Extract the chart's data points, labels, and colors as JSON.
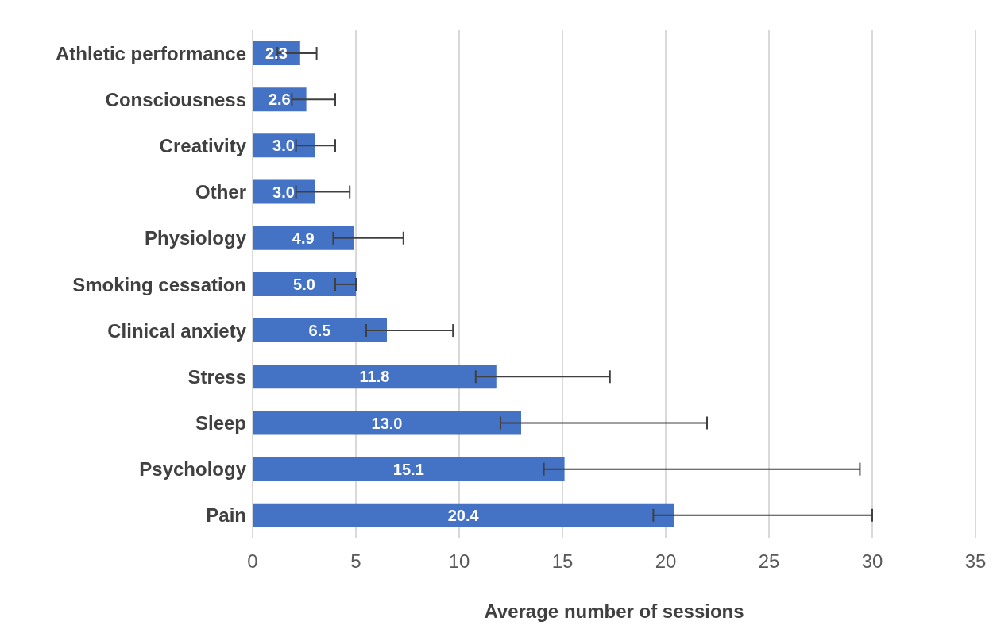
{
  "chart_data": {
    "type": "bar",
    "orientation": "horizontal",
    "xlabel": "Average number of sessions",
    "categories": [
      "Athletic performance",
      "Consciousness",
      "Creativity",
      "Other",
      "Physiology",
      "Smoking cessation",
      "Clinical anxiety",
      "Stress",
      "Sleep",
      "Psychology",
      "Pain"
    ],
    "values": [
      2.3,
      2.6,
      3.0,
      3.0,
      4.9,
      5.0,
      6.5,
      11.8,
      13.0,
      15.1,
      20.4
    ],
    "value_labels": [
      "2.3",
      "2.6",
      "3.0",
      "3.0",
      "4.9",
      "5.0",
      "6.5",
      "11.8",
      "13.0",
      "15.1",
      "20.4"
    ],
    "errors": [
      [
        1.2,
        3.1
      ],
      [
        1.9,
        4.0
      ],
      [
        2.1,
        4.0
      ],
      [
        2.1,
        4.7
      ],
      [
        3.9,
        7.3
      ],
      [
        4.0,
        5.0
      ],
      [
        5.5,
        9.7
      ],
      [
        10.8,
        17.3
      ],
      [
        12.0,
        22.0
      ],
      [
        14.1,
        29.4
      ],
      [
        19.4,
        30.0
      ]
    ],
    "color": "#4472c4",
    "xlim": [
      0,
      35
    ],
    "xticks": [
      0,
      5,
      10,
      15,
      20,
      25,
      30,
      35
    ],
    "grid": "x"
  }
}
